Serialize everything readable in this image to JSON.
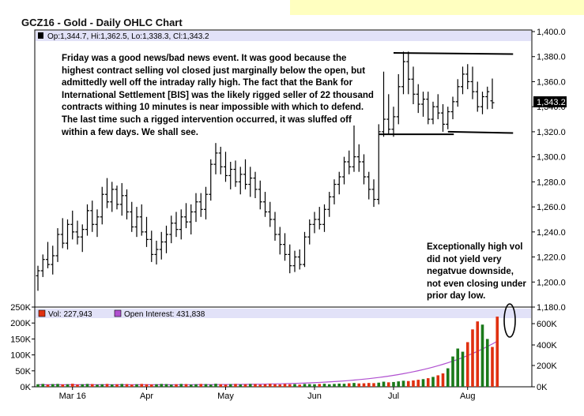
{
  "title": "GCZ16 - Gold - Daily OHLC Chart",
  "price_header": {
    "ohlc": "Op:1,344.7, Hi:1,362.5, Lo:1,338.3, Cl:1,343.2"
  },
  "last_price_label": "1,343.2",
  "volume_header": {
    "vol": "Vol: 227,943",
    "open_interest": "Open Interest: 431,838"
  },
  "annotations": {
    "commentary": "Friday was a good news/bad news event.  It was good because the highest contract selling vol closed just marginally below the open, but admittedly well off the intraday rally high.  The fact that the Bank for International Settlement [BIS] was the likely rigged seller of 22 thousand contracts withing 10 minutes is near impossible with which to defend.  The last time such a rigged intervention occurred, it was sluffed off within a few days.  We shall see.",
    "volume_note": "Exceptionally high vol did not yield very negatvue downside, not even closing under prior day low."
  },
  "colors": {
    "header_band": "#e2e2f8",
    "up_volume": "#1a7a1a",
    "down_volume": "#e03010",
    "open_interest": "#b050d0",
    "top_banner": "#ffffc0"
  },
  "chart_data": [
    {
      "type": "ohlc",
      "series_name": "GCZ16",
      "ylim": [
        1180,
        1400
      ],
      "y_ticks": [
        "1,400.0",
        "1,380.0",
        "1,360.0",
        "1,340.0",
        "1,320.0",
        "1,300.0",
        "1,280.0",
        "1,260.0",
        "1,240.0",
        "1,220.0",
        "1,200.0",
        "1,180.0"
      ],
      "x_ticks": [
        "Mar 16",
        "Apr",
        "May",
        "Jun",
        "Jul",
        "Aug"
      ],
      "bars": [
        {
          "o": 1205,
          "h": 1213,
          "l": 1193,
          "c": 1209
        },
        {
          "o": 1209,
          "h": 1222,
          "l": 1204,
          "c": 1218
        },
        {
          "o": 1218,
          "h": 1232,
          "l": 1211,
          "c": 1214
        },
        {
          "o": 1214,
          "h": 1229,
          "l": 1206,
          "c": 1221
        },
        {
          "o": 1221,
          "h": 1243,
          "l": 1216,
          "c": 1238
        },
        {
          "o": 1238,
          "h": 1251,
          "l": 1227,
          "c": 1231
        },
        {
          "o": 1231,
          "h": 1250,
          "l": 1226,
          "c": 1246
        },
        {
          "o": 1246,
          "h": 1257,
          "l": 1234,
          "c": 1240
        },
        {
          "o": 1240,
          "h": 1249,
          "l": 1230,
          "c": 1236
        },
        {
          "o": 1236,
          "h": 1246,
          "l": 1224,
          "c": 1242
        },
        {
          "o": 1242,
          "h": 1262,
          "l": 1237,
          "c": 1257
        },
        {
          "o": 1257,
          "h": 1265,
          "l": 1240,
          "c": 1246
        },
        {
          "o": 1246,
          "h": 1258,
          "l": 1236,
          "c": 1252
        },
        {
          "o": 1252,
          "h": 1276,
          "l": 1246,
          "c": 1270
        },
        {
          "o": 1270,
          "h": 1283,
          "l": 1259,
          "c": 1264
        },
        {
          "o": 1264,
          "h": 1280,
          "l": 1256,
          "c": 1274
        },
        {
          "o": 1274,
          "h": 1277,
          "l": 1258,
          "c": 1262
        },
        {
          "o": 1262,
          "h": 1279,
          "l": 1253,
          "c": 1269
        },
        {
          "o": 1269,
          "h": 1274,
          "l": 1250,
          "c": 1256
        },
        {
          "o": 1256,
          "h": 1264,
          "l": 1240,
          "c": 1244
        },
        {
          "o": 1244,
          "h": 1260,
          "l": 1236,
          "c": 1252
        },
        {
          "o": 1252,
          "h": 1262,
          "l": 1237,
          "c": 1240
        },
        {
          "o": 1240,
          "h": 1252,
          "l": 1228,
          "c": 1234
        },
        {
          "o": 1234,
          "h": 1241,
          "l": 1216,
          "c": 1222
        },
        {
          "o": 1222,
          "h": 1233,
          "l": 1214,
          "c": 1226
        },
        {
          "o": 1226,
          "h": 1240,
          "l": 1218,
          "c": 1232
        },
        {
          "o": 1232,
          "h": 1245,
          "l": 1223,
          "c": 1238
        },
        {
          "o": 1238,
          "h": 1253,
          "l": 1231,
          "c": 1247
        },
        {
          "o": 1247,
          "h": 1256,
          "l": 1236,
          "c": 1242
        },
        {
          "o": 1242,
          "h": 1258,
          "l": 1234,
          "c": 1252
        },
        {
          "o": 1252,
          "h": 1263,
          "l": 1243,
          "c": 1248
        },
        {
          "o": 1248,
          "h": 1262,
          "l": 1238,
          "c": 1256
        },
        {
          "o": 1256,
          "h": 1271,
          "l": 1248,
          "c": 1264
        },
        {
          "o": 1264,
          "h": 1271,
          "l": 1252,
          "c": 1258
        },
        {
          "o": 1258,
          "h": 1276,
          "l": 1250,
          "c": 1270
        },
        {
          "o": 1270,
          "h": 1298,
          "l": 1265,
          "c": 1294
        },
        {
          "o": 1294,
          "h": 1311,
          "l": 1286,
          "c": 1303
        },
        {
          "o": 1303,
          "h": 1308,
          "l": 1286,
          "c": 1292
        },
        {
          "o": 1292,
          "h": 1304,
          "l": 1280,
          "c": 1285
        },
        {
          "o": 1285,
          "h": 1296,
          "l": 1274,
          "c": 1290
        },
        {
          "o": 1290,
          "h": 1297,
          "l": 1276,
          "c": 1280
        },
        {
          "o": 1280,
          "h": 1292,
          "l": 1270,
          "c": 1286
        },
        {
          "o": 1286,
          "h": 1298,
          "l": 1274,
          "c": 1278
        },
        {
          "o": 1278,
          "h": 1292,
          "l": 1268,
          "c": 1283
        },
        {
          "o": 1283,
          "h": 1288,
          "l": 1267,
          "c": 1274
        },
        {
          "o": 1274,
          "h": 1281,
          "l": 1258,
          "c": 1264
        },
        {
          "o": 1264,
          "h": 1272,
          "l": 1252,
          "c": 1256
        },
        {
          "o": 1256,
          "h": 1264,
          "l": 1244,
          "c": 1250
        },
        {
          "o": 1250,
          "h": 1256,
          "l": 1233,
          "c": 1238
        },
        {
          "o": 1238,
          "h": 1244,
          "l": 1222,
          "c": 1230
        },
        {
          "o": 1230,
          "h": 1239,
          "l": 1217,
          "c": 1222
        },
        {
          "o": 1222,
          "h": 1230,
          "l": 1207,
          "c": 1213
        },
        {
          "o": 1213,
          "h": 1225,
          "l": 1208,
          "c": 1220
        },
        {
          "o": 1220,
          "h": 1226,
          "l": 1210,
          "c": 1214
        },
        {
          "o": 1214,
          "h": 1240,
          "l": 1212,
          "c": 1236
        },
        {
          "o": 1236,
          "h": 1250,
          "l": 1230,
          "c": 1246
        },
        {
          "o": 1246,
          "h": 1256,
          "l": 1239,
          "c": 1250
        },
        {
          "o": 1250,
          "h": 1260,
          "l": 1242,
          "c": 1246
        },
        {
          "o": 1246,
          "h": 1262,
          "l": 1240,
          "c": 1258
        },
        {
          "o": 1258,
          "h": 1272,
          "l": 1252,
          "c": 1268
        },
        {
          "o": 1268,
          "h": 1282,
          "l": 1262,
          "c": 1278
        },
        {
          "o": 1278,
          "h": 1288,
          "l": 1270,
          "c": 1284
        },
        {
          "o": 1284,
          "h": 1300,
          "l": 1278,
          "c": 1296
        },
        {
          "o": 1296,
          "h": 1305,
          "l": 1286,
          "c": 1292
        },
        {
          "o": 1292,
          "h": 1325,
          "l": 1288,
          "c": 1300
        },
        {
          "o": 1300,
          "h": 1310,
          "l": 1288,
          "c": 1296
        },
        {
          "o": 1296,
          "h": 1302,
          "l": 1278,
          "c": 1284
        },
        {
          "o": 1284,
          "h": 1288,
          "l": 1266,
          "c": 1274
        },
        {
          "o": 1274,
          "h": 1282,
          "l": 1260,
          "c": 1266
        },
        {
          "o": 1266,
          "h": 1326,
          "l": 1262,
          "c": 1320
        },
        {
          "o": 1320,
          "h": 1368,
          "l": 1316,
          "c": 1330
        },
        {
          "o": 1330,
          "h": 1350,
          "l": 1318,
          "c": 1322
        },
        {
          "o": 1322,
          "h": 1340,
          "l": 1316,
          "c": 1332
        },
        {
          "o": 1332,
          "h": 1366,
          "l": 1326,
          "c": 1356
        },
        {
          "o": 1356,
          "h": 1384,
          "l": 1350,
          "c": 1376
        },
        {
          "o": 1376,
          "h": 1384,
          "l": 1350,
          "c": 1362
        },
        {
          "o": 1362,
          "h": 1372,
          "l": 1342,
          "c": 1350
        },
        {
          "o": 1350,
          "h": 1358,
          "l": 1335,
          "c": 1342
        },
        {
          "o": 1342,
          "h": 1352,
          "l": 1332,
          "c": 1346
        },
        {
          "o": 1346,
          "h": 1352,
          "l": 1326,
          "c": 1330
        },
        {
          "o": 1330,
          "h": 1344,
          "l": 1326,
          "c": 1340
        },
        {
          "o": 1340,
          "h": 1350,
          "l": 1330,
          "c": 1335
        },
        {
          "o": 1335,
          "h": 1342,
          "l": 1320,
          "c": 1326
        },
        {
          "o": 1326,
          "h": 1340,
          "l": 1322,
          "c": 1336
        },
        {
          "o": 1336,
          "h": 1348,
          "l": 1330,
          "c": 1344
        },
        {
          "o": 1344,
          "h": 1362,
          "l": 1340,
          "c": 1356
        },
        {
          "o": 1356,
          "h": 1372,
          "l": 1350,
          "c": 1366
        },
        {
          "o": 1366,
          "h": 1374,
          "l": 1354,
          "c": 1360
        },
        {
          "o": 1360,
          "h": 1372,
          "l": 1346,
          "c": 1352
        },
        {
          "o": 1352,
          "h": 1360,
          "l": 1336,
          "c": 1340
        },
        {
          "o": 1340,
          "h": 1352,
          "l": 1334,
          "c": 1348
        },
        {
          "o": 1348,
          "h": 1356,
          "l": 1338,
          "c": 1352
        },
        {
          "o": 1344.7,
          "h": 1362.5,
          "l": 1338.3,
          "c": 1343.2
        }
      ],
      "trendlines": [
        {
          "from_bar": 72,
          "from_y": 1383,
          "to_bar": 93,
          "to_y": 1382
        },
        {
          "from_bar": 69,
          "from_y": 1318,
          "to_bar": 81,
          "to_y": 1318
        },
        {
          "from_bar": 83,
          "from_y": 1320,
          "to_bar": 93,
          "to_y": 1319
        }
      ]
    },
    {
      "type": "bar",
      "series_name": "Vol",
      "ylim": [
        0,
        250000
      ],
      "y_ticks_left": [
        "250K",
        "200K",
        "150K",
        "100K",
        "50K",
        "0K"
      ],
      "y_ticks_right": [
        "1,180.0",
        "600K",
        "400K",
        "200K",
        "0K"
      ],
      "values": [
        8000,
        9000,
        7000,
        8500,
        9000,
        7500,
        8000,
        9500,
        7000,
        8000,
        9000,
        8500,
        7000,
        8000,
        9000,
        7500,
        8000,
        9000,
        8500,
        7000,
        8000,
        9000,
        8000,
        7500,
        8000,
        9000,
        8500,
        7000,
        8000,
        9000,
        8500,
        7000,
        8000,
        9000,
        8500,
        7000,
        9500,
        8000,
        7000,
        8500,
        9000,
        7500,
        8000,
        9000,
        8500,
        7000,
        8000,
        9500,
        8000,
        7500,
        9000,
        8000,
        8500,
        7000,
        9000,
        8500,
        8000,
        9000,
        9500,
        8000,
        9000,
        10000,
        9500,
        11000,
        12000,
        10500,
        11000,
        12000,
        11500,
        13000,
        16000,
        14000,
        15000,
        17000,
        19000,
        18000,
        20000,
        22000,
        24000,
        27000,
        31000,
        36000,
        42000,
        58000,
        95000,
        120000,
        110000,
        140000,
        180000,
        205000,
        195000,
        150000,
        125000,
        220000
      ]
    }
  ]
}
